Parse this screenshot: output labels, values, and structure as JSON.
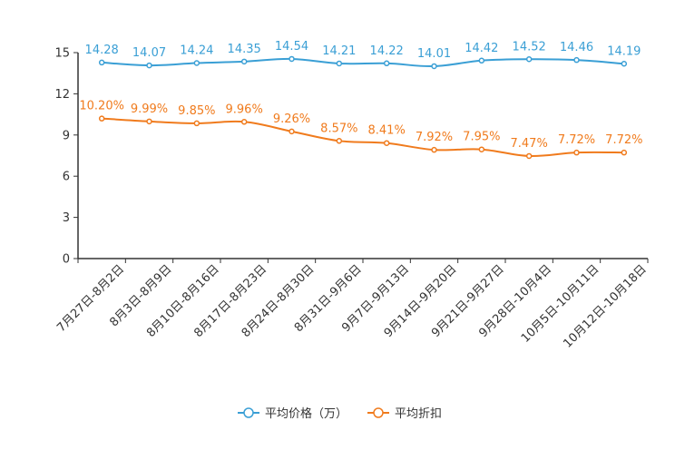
{
  "chart_data": {
    "type": "line",
    "title": "",
    "xlabel": "",
    "ylabel": "",
    "ylim": [
      0,
      15
    ],
    "yticks": [
      0,
      3,
      6,
      9,
      12,
      15
    ],
    "grid": false,
    "legend_position": "bottom-center",
    "categories": [
      "7月27日-8月2日",
      "8月3日-8月9日",
      "8月10日-8月16日",
      "8月17日-8月23日",
      "8月24日-8月30日",
      "8月31日-9月6日",
      "9月7日-9月13日",
      "9月14日-9月20日",
      "9月21日-9月27日",
      "9月28日-10月4日",
      "10月5日-10月11日",
      "10月12日-10月18日"
    ],
    "series": [
      {
        "name": "平均价格（万）",
        "color": "#3a9fd5",
        "values": [
          14.28,
          14.07,
          14.24,
          14.35,
          14.54,
          14.21,
          14.22,
          14.01,
          14.42,
          14.52,
          14.46,
          14.19
        ],
        "labels": [
          "14.28",
          "14.07",
          "14.24",
          "14.35",
          "14.54",
          "14.21",
          "14.22",
          "14.01",
          "14.42",
          "14.52",
          "14.46",
          "14.19"
        ]
      },
      {
        "name": "平均折扣",
        "color": "#f07b1d",
        "values": [
          10.2,
          9.99,
          9.85,
          9.96,
          9.26,
          8.57,
          8.41,
          7.92,
          7.95,
          7.47,
          7.72,
          7.72
        ],
        "labels": [
          "10.20%",
          "9.99%",
          "9.85%",
          "9.96%",
          "9.26%",
          "8.57%",
          "8.41%",
          "7.92%",
          "7.95%",
          "7.47%",
          "7.72%",
          "7.72%"
        ]
      }
    ]
  }
}
